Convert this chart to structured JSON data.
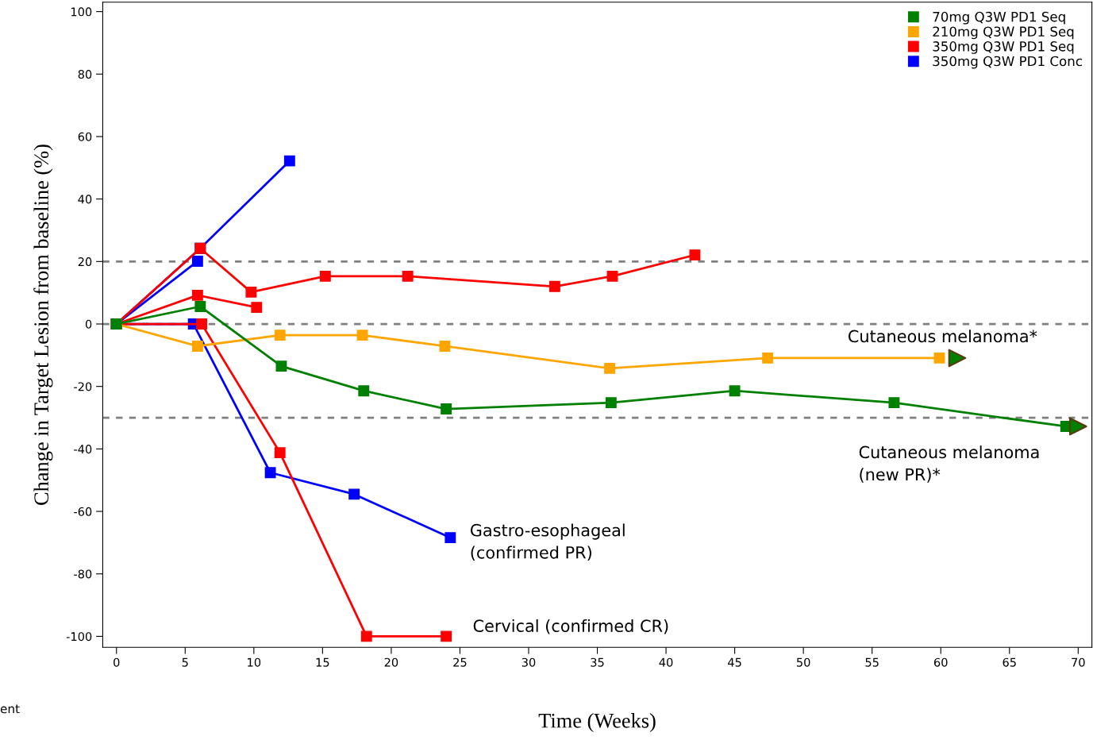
{
  "chart_data": {
    "type": "line",
    "xlabel": "Time (Weeks)",
    "ylabel": "Change in Target Lesion from baseline (%)",
    "xlim": [
      -1,
      71
    ],
    "ylim": [
      -103.5,
      103
    ],
    "xticks": [
      0,
      5,
      10,
      15,
      20,
      25,
      30,
      35,
      40,
      45,
      50,
      55,
      60,
      65,
      70
    ],
    "yticks": [
      -100,
      -80,
      -60,
      -40,
      -20,
      0,
      20,
      40,
      60,
      80,
      100
    ],
    "grid": false,
    "legend": "top right",
    "marker": "square",
    "line_style": "solid",
    "ref_lines": [
      {
        "axis": "y",
        "value": 20,
        "color": "#808080",
        "line_style": "dashed"
      },
      {
        "axis": "y",
        "value": 0,
        "color": "#808080",
        "line_style": "dashed"
      },
      {
        "axis": "y",
        "value": -30,
        "color": "#808080",
        "line_style": "dashed"
      }
    ],
    "series": [
      {
        "name": "70mg Q3W PD1 Seq",
        "color": "#008000",
        "x": [
          0,
          6.1,
          12.0,
          18.0,
          24.0,
          36.0,
          45.0,
          56.6,
          69.1
        ],
        "values": [
          0,
          5.6,
          -13.5,
          -21.4,
          -27.2,
          -25.2,
          -21.4,
          -25.2,
          -32.8
        ]
      },
      {
        "name": "210mg Q3W PD1 Seq",
        "color": "#ffa500",
        "x": [
          0,
          5.9,
          11.9,
          17.9,
          23.9,
          35.9,
          47.4,
          59.9
        ],
        "values": [
          0,
          -7.1,
          -3.6,
          -3.6,
          -7.1,
          -14.2,
          -10.9,
          -10.9
        ]
      },
      {
        "name": "350mg Q3W PD1 Seq",
        "color": "#ff0000",
        "x": [
          0,
          6.1,
          9.8,
          15.2,
          21.2,
          31.9,
          36.1,
          42.1
        ],
        "values": [
          0,
          24.2,
          10.2,
          15.3,
          15.3,
          12.0,
          15.3,
          22.1
        ]
      },
      {
        "color": "#ff0000",
        "x": [
          0,
          5.9,
          10.2
        ],
        "values": [
          0,
          9.2,
          5.3
        ]
      },
      {
        "color": "#ff0000",
        "x": [
          0,
          6.2,
          11.9,
          18.2,
          24.0
        ],
        "values": [
          0,
          0,
          -41.2,
          -100,
          -100
        ]
      },
      {
        "name": "350mg Q3W PD1 Conc",
        "color": "#0000ff",
        "x": [
          0,
          6.1,
          12.6
        ],
        "values": [
          0,
          24.2,
          52.2
        ]
      },
      {
        "color": "#0000ff",
        "x": [
          0,
          5.9
        ],
        "values": [
          0,
          20.1
        ]
      },
      {
        "color": "#0000ff",
        "x": [
          0,
          5.6,
          11.2,
          17.3,
          24.3
        ],
        "values": [
          0,
          0,
          -47.6,
          -54.5,
          -68.4
        ]
      },
      {
        "type": "scatter",
        "marker": "triangle",
        "color": "#008000",
        "x": [
          61.2,
          70.0
        ],
        "values": [
          -10.9,
          -32.8
        ]
      }
    ],
    "annotations": [
      "Cutaneous melanoma*",
      "Cutaneous melanoma\n(new PR)*",
      "Gastro-esophageal\n(confirmed PR)",
      "Cervical (confirmed CR)",
      "ent"
    ]
  }
}
